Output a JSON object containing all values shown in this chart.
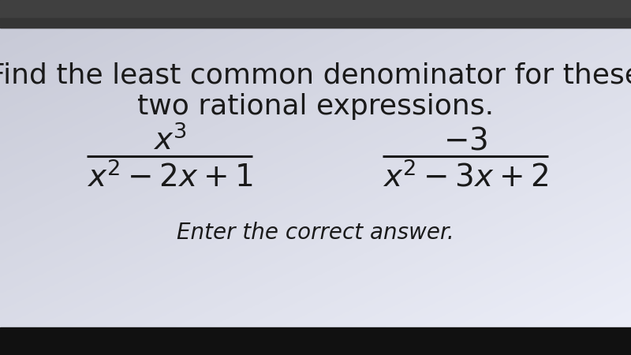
{
  "title_line1": "Find the least common denominator for these",
  "title_line2": "two rational expressions.",
  "frac1_num": "$x^3$",
  "frac1_den": "$x^2 - 2x + 1$",
  "frac2_num": "$-3$",
  "frac2_den": "$x^2 - 3x + 2$",
  "footer": "Enter the correct answer.",
  "bg_color": "#e8eaf4",
  "bg_color_top_left": "#c8cad6",
  "bg_color_bottom_right": "#eceef8",
  "text_color": "#1a1a1a",
  "browser_bar_color": "#3c3c3c",
  "taskbar_color": "#1a1a1a",
  "title_fontsize": 26,
  "expr_fontsize": 28,
  "footer_fontsize": 20,
  "fig_width": 8.0,
  "fig_height": 4.5,
  "dpi": 100
}
